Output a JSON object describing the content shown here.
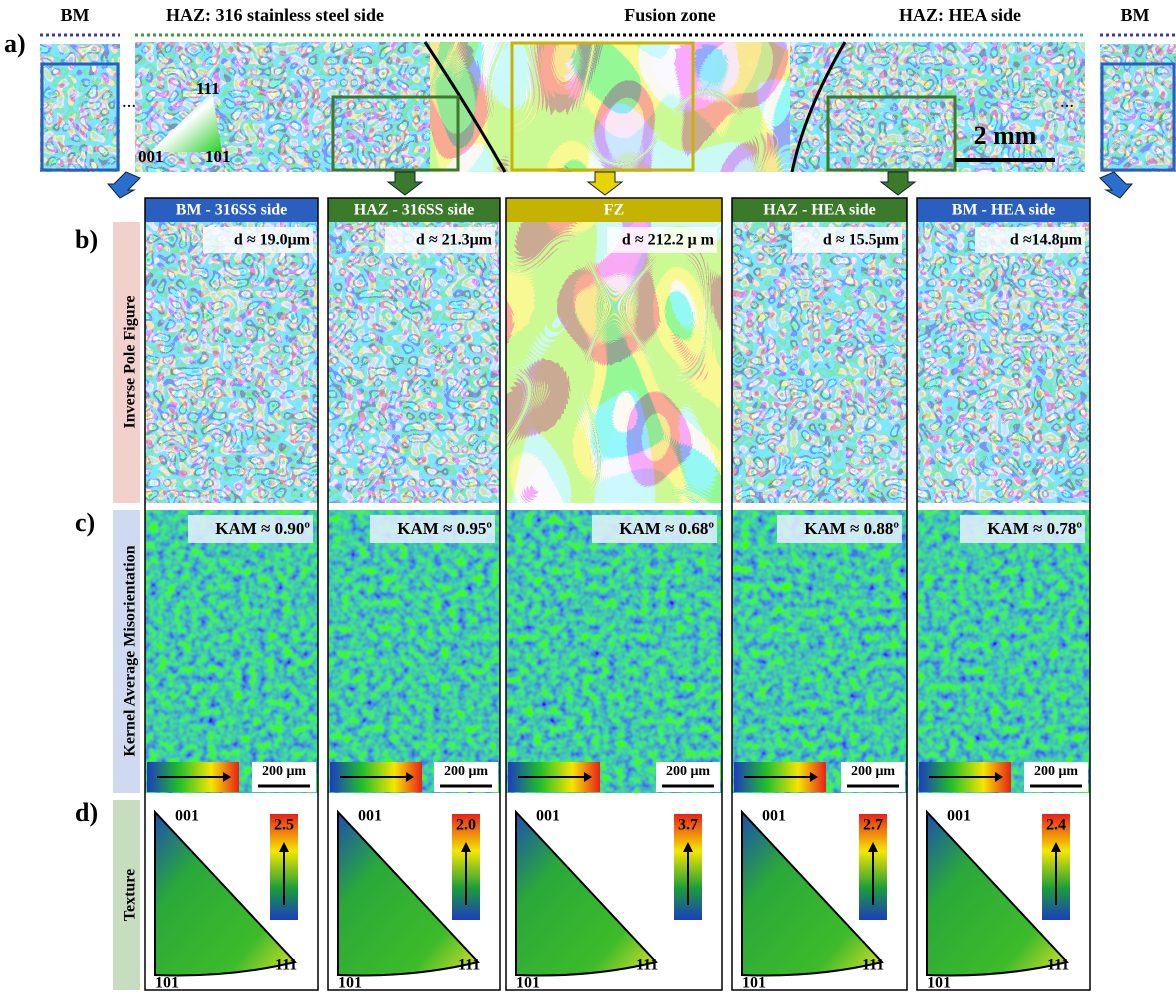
{
  "panel_a": {
    "label": "a)",
    "zones": [
      "BM",
      "HAZ: 316 stainless steel side",
      "Fusion zone",
      "HAZ: HEA side",
      "BM"
    ],
    "ipf_key": [
      "111",
      "001",
      "101"
    ],
    "scale_bar": "2 mm"
  },
  "row_labels": [
    "b)",
    "c)",
    "d)"
  ],
  "row_titles": [
    "Inverse Pole Figure",
    "Kernel Average Misorientation",
    "Texture"
  ],
  "kam_scale_bar": "200 μm",
  "pole_labels": [
    "001",
    "101",
    "111"
  ],
  "columns": [
    {
      "title": "BM - 316SS side",
      "grain_size": "d ≈ 19.0μm",
      "kam": "KAM ≈ 0.90º",
      "texture_max": "2.5"
    },
    {
      "title": "HAZ - 316SS side",
      "grain_size": "d ≈ 21.3μm",
      "kam": "KAM ≈ 0.95º",
      "texture_max": "2.0"
    },
    {
      "title": "FZ",
      "grain_size": "d ≈ 212.2 μ m",
      "kam": "KAM ≈ 0.68º",
      "texture_max": "3.7"
    },
    {
      "title": "HAZ - HEA side",
      "grain_size": "d ≈ 15.5μm",
      "kam": "KAM ≈ 0.88º",
      "texture_max": "2.7"
    },
    {
      "title": "BM - HEA side",
      "grain_size": "d ≈14.8μm",
      "kam": "KAM ≈ 0.78º",
      "texture_max": "2.4"
    }
  ]
}
